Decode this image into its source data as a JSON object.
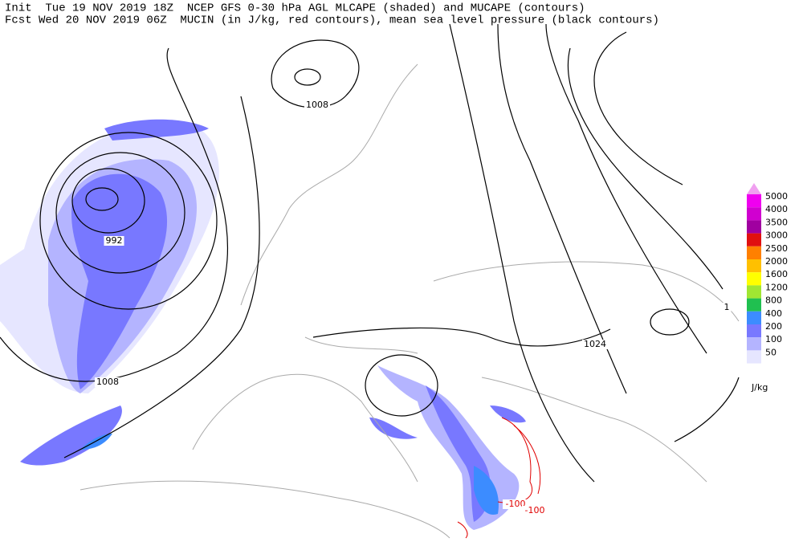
{
  "header": {
    "lines": [
      "Init  Tue 19 NOV 2019 18Z  NCEP GFS 0-30 hPa AGL MLCAPE (shaded) and MUCAPE (contours)",
      "Fcst Wed 20 NOV 2019 06Z  MUCIN (in J/kg, red contours), mean sea level pressure (black contours)"
    ]
  },
  "contour_labels": [
    {
      "text": "1008",
      "color": "#000000"
    },
    {
      "text": "992",
      "color": "#000000"
    },
    {
      "text": "1008",
      "color": "#000000"
    },
    {
      "text": "1024",
      "color": "#000000"
    },
    {
      "text": "1",
      "color": "#000000"
    },
    {
      "text": "-100",
      "color": "#e00000"
    },
    {
      "text": "-100",
      "color": "#e00000"
    }
  ],
  "legend": {
    "top_color": "#f0a0f0",
    "items": [
      {
        "label": "5000",
        "color": "#f000f0"
      },
      {
        "label": "4000",
        "color": "#d000d0"
      },
      {
        "label": "3500",
        "color": "#a000a0"
      },
      {
        "label": "3000",
        "color": "#e01010"
      },
      {
        "label": "2500",
        "color": "#ff8000"
      },
      {
        "label": "2000",
        "color": "#ffc000"
      },
      {
        "label": "1600",
        "color": "#ffff00"
      },
      {
        "label": "1200",
        "color": "#a0e632"
      },
      {
        "label": "800",
        "color": "#20c050"
      },
      {
        "label": "400",
        "color": "#3c8cff"
      },
      {
        "label": "200",
        "color": "#7878ff"
      },
      {
        "label": "100",
        "color": "#b4b4ff"
      },
      {
        "label": "50",
        "color": "#e6e6ff"
      }
    ],
    "unit": "J/kg"
  }
}
